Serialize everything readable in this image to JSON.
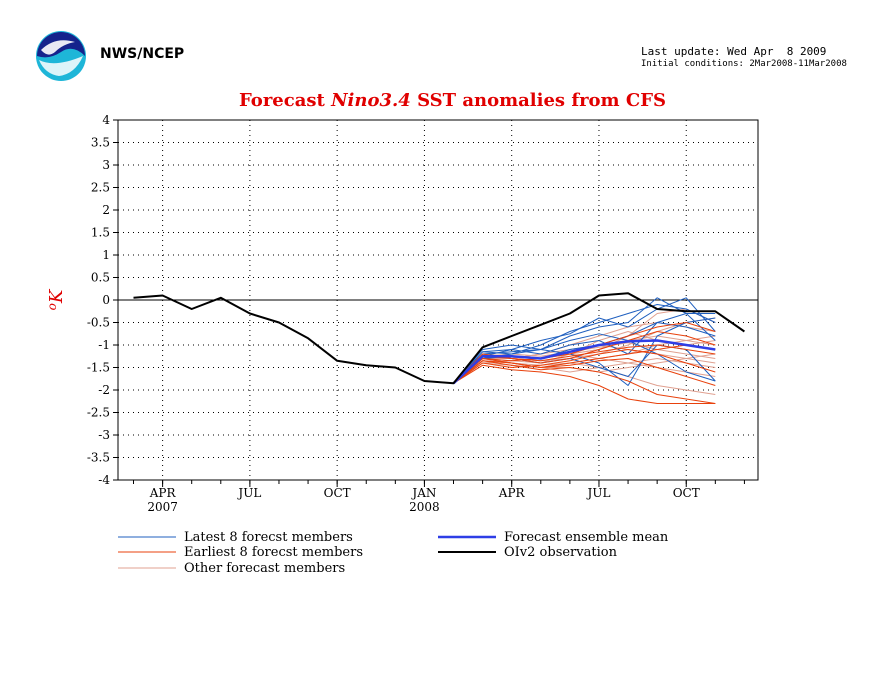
{
  "header": {
    "org": "NWS/NCEP",
    "last_update": "Last update: Wed Apr  8 2009",
    "initial_conditions": "Initial conditions: 2Mar2008-11Mar2008",
    "logo_icon": "noaa-logo-icon"
  },
  "chart_data": {
    "type": "line",
    "title_prefix": "Forecast ",
    "title_italic": "Nino3.4",
    "title_suffix": " SST anomalies from CFS",
    "ylabel": "oK",
    "ylim": [
      -4,
      4
    ],
    "yticks": [
      4,
      3.5,
      3,
      2.5,
      2,
      1.5,
      1,
      0.5,
      0,
      -0.5,
      -1,
      -1.5,
      -2,
      -2.5,
      -3,
      -3.5,
      -4
    ],
    "xlim": [
      "2007-02-15",
      "2008-12-15"
    ],
    "xticks": [
      {
        "date": "2007-04",
        "label": "APR",
        "year": "2007"
      },
      {
        "date": "2007-07",
        "label": "JUL",
        "year": ""
      },
      {
        "date": "2007-10",
        "label": "OCT",
        "year": ""
      },
      {
        "date": "2008-01",
        "label": "JAN",
        "year": "2008"
      },
      {
        "date": "2008-04",
        "label": "APR",
        "year": ""
      },
      {
        "date": "2008-07",
        "label": "JUL",
        "year": ""
      },
      {
        "date": "2008-10",
        "label": "OCT",
        "year": ""
      }
    ],
    "zero_line": 0,
    "legend": [
      {
        "name": "Latest 8 forecst members",
        "color": "#1f5fbf",
        "width": 1
      },
      {
        "name": "Earliest 8 forecst members",
        "color": "#e8410c",
        "width": 1
      },
      {
        "name": "Other forecast members",
        "color": "#e0a090",
        "width": 1
      },
      {
        "name": "Forecast ensemble mean",
        "color": "#2e3ee6",
        "width": 2.5
      },
      {
        "name": "OIv2 observation",
        "color": "#000000",
        "width": 2
      }
    ],
    "forecast_months": [
      "2008-03",
      "2008-04",
      "2008-05",
      "2008-06",
      "2008-07",
      "2008-08",
      "2008-09",
      "2008-10",
      "2008-11"
    ],
    "series": [
      {
        "group": "observation",
        "x": [
          "2007-03",
          "2007-04",
          "2007-05",
          "2007-06",
          "2007-07",
          "2007-08",
          "2007-09",
          "2007-10",
          "2007-11",
          "2007-12",
          "2008-01",
          "2008-02",
          "2008-03",
          "2008-04",
          "2008-05",
          "2008-06",
          "2008-07",
          "2008-08",
          "2008-09",
          "2008-10",
          "2008-11",
          "2008-12"
        ],
        "values": [
          0.05,
          0.1,
          -0.2,
          0.05,
          -0.3,
          -0.5,
          -0.85,
          -1.35,
          -1.45,
          -1.5,
          -1.8,
          -1.85,
          -1.05,
          -0.8,
          -0.55,
          -0.3,
          0.1,
          0.15,
          -0.2,
          -0.25,
          -0.25,
          -0.7
        ]
      },
      {
        "group": "mean",
        "x": [
          "2008-02",
          "2008-03",
          "2008-04",
          "2008-05",
          "2008-06",
          "2008-07",
          "2008-08",
          "2008-09",
          "2008-10",
          "2008-11"
        ],
        "values": [
          -1.85,
          -1.25,
          -1.25,
          -1.3,
          -1.15,
          -1.0,
          -0.92,
          -0.9,
          -1.0,
          -1.1
        ]
      },
      {
        "group": "latest",
        "values": [
          -1.15,
          -1.2,
          -1.0,
          -0.7,
          -0.5,
          -0.3,
          -0.1,
          -0.2,
          -0.5
        ]
      },
      {
        "group": "latest",
        "values": [
          -1.2,
          -1.15,
          -1.1,
          -0.8,
          -0.6,
          -0.5,
          0.05,
          -0.3,
          -0.9
        ]
      },
      {
        "group": "latest",
        "values": [
          -1.25,
          -1.1,
          -1.2,
          -1.0,
          -0.9,
          -1.2,
          -0.5,
          -0.3,
          -0.3
        ]
      },
      {
        "group": "latest",
        "values": [
          -1.1,
          -1.0,
          -1.1,
          -1.2,
          -1.4,
          -1.9,
          -0.8,
          -0.5,
          -0.4
        ]
      },
      {
        "group": "latest",
        "values": [
          -1.3,
          -1.25,
          -1.3,
          -1.1,
          -1.0,
          -0.8,
          -0.5,
          -0.6,
          -0.8
        ]
      },
      {
        "group": "latest",
        "values": [
          -1.2,
          -1.3,
          -1.4,
          -1.3,
          -1.5,
          -1.7,
          -1.0,
          -1.1,
          -1.8
        ]
      },
      {
        "group": "latest",
        "values": [
          -1.15,
          -1.1,
          -0.9,
          -0.75,
          -0.4,
          -0.6,
          -0.2,
          0.05,
          -0.7
        ]
      },
      {
        "group": "latest",
        "values": [
          -1.3,
          -1.2,
          -1.1,
          -0.9,
          -0.75,
          -0.9,
          -1.2,
          -1.6,
          -1.8
        ]
      },
      {
        "group": "other",
        "values": [
          -1.3,
          -1.35,
          -1.4,
          -1.2,
          -1.1,
          -0.9,
          -0.8,
          -0.9,
          -1.0
        ]
      },
      {
        "group": "other",
        "values": [
          -1.25,
          -1.3,
          -1.2,
          -1.1,
          -1.0,
          -1.1,
          -1.2,
          -1.3,
          -1.4
        ]
      },
      {
        "group": "other",
        "values": [
          -1.35,
          -1.4,
          -1.5,
          -1.4,
          -1.3,
          -1.2,
          -1.0,
          -0.9,
          -0.8
        ]
      },
      {
        "group": "other",
        "values": [
          -1.3,
          -1.25,
          -1.3,
          -1.2,
          -1.3,
          -1.4,
          -1.5,
          -1.6,
          -1.7
        ]
      },
      {
        "group": "other",
        "values": [
          -1.2,
          -1.3,
          -1.35,
          -1.3,
          -1.2,
          -1.0,
          -0.7,
          -0.5,
          -0.4
        ]
      },
      {
        "group": "other",
        "values": [
          -1.4,
          -1.45,
          -1.5,
          -1.6,
          -1.5,
          -1.4,
          -1.3,
          -1.4,
          -1.5
        ]
      },
      {
        "group": "other",
        "values": [
          -1.3,
          -1.3,
          -1.2,
          -1.0,
          -0.8,
          -0.6,
          -0.5,
          -0.6,
          -0.7
        ]
      },
      {
        "group": "other",
        "values": [
          -1.35,
          -1.4,
          -1.45,
          -1.4,
          -1.5,
          -1.7,
          -1.9,
          -2.0,
          -2.1
        ]
      },
      {
        "group": "other",
        "values": [
          -1.25,
          -1.2,
          -1.25,
          -1.15,
          -1.05,
          -0.95,
          -1.1,
          -1.2,
          -1.3
        ]
      },
      {
        "group": "other",
        "values": [
          -1.4,
          -1.35,
          -1.3,
          -1.2,
          -1.1,
          -0.8,
          -0.3,
          -0.2,
          -0.5
        ]
      },
      {
        "group": "other",
        "values": [
          -1.3,
          -1.4,
          -1.5,
          -1.5,
          -1.6,
          -1.5,
          -1.4,
          -1.3,
          -1.2
        ]
      },
      {
        "group": "other",
        "values": [
          -1.2,
          -1.25,
          -1.3,
          -1.2,
          -0.9,
          -0.7,
          -0.9,
          -1.0,
          -0.9
        ]
      },
      {
        "group": "earliest",
        "values": [
          -1.3,
          -1.4,
          -1.5,
          -1.4,
          -1.3,
          -1.2,
          -1.1,
          -1.0,
          -1.1
        ]
      },
      {
        "group": "earliest",
        "values": [
          -1.35,
          -1.45,
          -1.55,
          -1.5,
          -1.6,
          -1.8,
          -2.1,
          -2.2,
          -2.3
        ]
      },
      {
        "group": "earliest",
        "values": [
          -1.25,
          -1.3,
          -1.4,
          -1.3,
          -1.1,
          -0.9,
          -0.7,
          -0.8,
          -1.0
        ]
      },
      {
        "group": "earliest",
        "values": [
          -1.4,
          -1.5,
          -1.45,
          -1.35,
          -1.2,
          -1.1,
          -1.2,
          -1.4,
          -1.6
        ]
      },
      {
        "group": "earliest",
        "values": [
          -1.3,
          -1.35,
          -1.3,
          -1.2,
          -1.0,
          -0.8,
          -0.6,
          -0.5,
          -0.7
        ]
      },
      {
        "group": "earliest",
        "values": [
          -1.45,
          -1.55,
          -1.6,
          -1.7,
          -1.9,
          -2.2,
          -2.3,
          -2.3,
          -2.3
        ]
      },
      {
        "group": "earliest",
        "values": [
          -1.2,
          -1.3,
          -1.35,
          -1.25,
          -1.15,
          -1.05,
          -1.0,
          -1.1,
          -1.2
        ]
      },
      {
        "group": "earliest",
        "values": [
          -1.35,
          -1.4,
          -1.5,
          -1.45,
          -1.35,
          -1.3,
          -1.5,
          -1.7,
          -1.9
        ]
      }
    ]
  }
}
